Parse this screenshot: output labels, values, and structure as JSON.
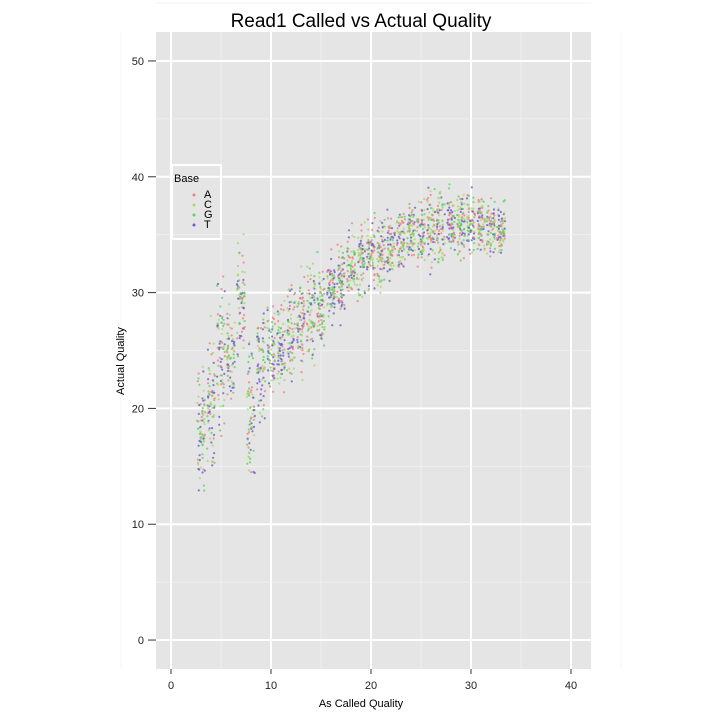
{
  "chart_data": {
    "type": "scatter",
    "title": "Read1 Called vs Actual Quality",
    "xlabel": "As Called Quality",
    "ylabel": "Actual Quality",
    "xlim": [
      -1.5,
      42
    ],
    "ylim": [
      -2.5,
      52.5
    ],
    "x_ticks": [
      0,
      10,
      20,
      30,
      40
    ],
    "y_ticks": [
      0,
      10,
      20,
      30,
      40,
      50
    ],
    "grid": true,
    "background": "#e5e5e5",
    "grid_color": "#ffffff",
    "legend": {
      "title": "Base",
      "placement": "top-left",
      "entries": [
        "A",
        "C",
        "G",
        "T"
      ]
    },
    "series": [
      {
        "name": "A",
        "color": "#f08080"
      },
      {
        "name": "C",
        "color": "#a6d96a"
      },
      {
        "name": "G",
        "color": "#5ad45a"
      },
      {
        "name": "T",
        "color": "#6a5acd"
      }
    ],
    "x_values": [
      3,
      4,
      5,
      6,
      7,
      8,
      9,
      10,
      11,
      12,
      13,
      14,
      15,
      16,
      17,
      18,
      19,
      20,
      21,
      22,
      23,
      24,
      25,
      26,
      27,
      28,
      29,
      30,
      31,
      32,
      33
    ],
    "y_ranges": [
      [
        12,
        24
      ],
      [
        14,
        27
      ],
      [
        18,
        33
      ],
      [
        20,
        29
      ],
      [
        24,
        35
      ],
      [
        13,
        26
      ],
      [
        18,
        29
      ],
      [
        20,
        29
      ],
      [
        21,
        30
      ],
      [
        22,
        31
      ],
      [
        23,
        32
      ],
      [
        24,
        33
      ],
      [
        25,
        33
      ],
      [
        27,
        34
      ],
      [
        27,
        35
      ],
      [
        29,
        36
      ],
      [
        29,
        36
      ],
      [
        30,
        37
      ],
      [
        30,
        37
      ],
      [
        31,
        37
      ],
      [
        31,
        38
      ],
      [
        32,
        38
      ],
      [
        32,
        38
      ],
      [
        32,
        39
      ],
      [
        32,
        39
      ],
      [
        33,
        39
      ],
      [
        33,
        39
      ],
      [
        33,
        39
      ],
      [
        33,
        39
      ],
      [
        33,
        38
      ],
      [
        33,
        38
      ]
    ]
  }
}
